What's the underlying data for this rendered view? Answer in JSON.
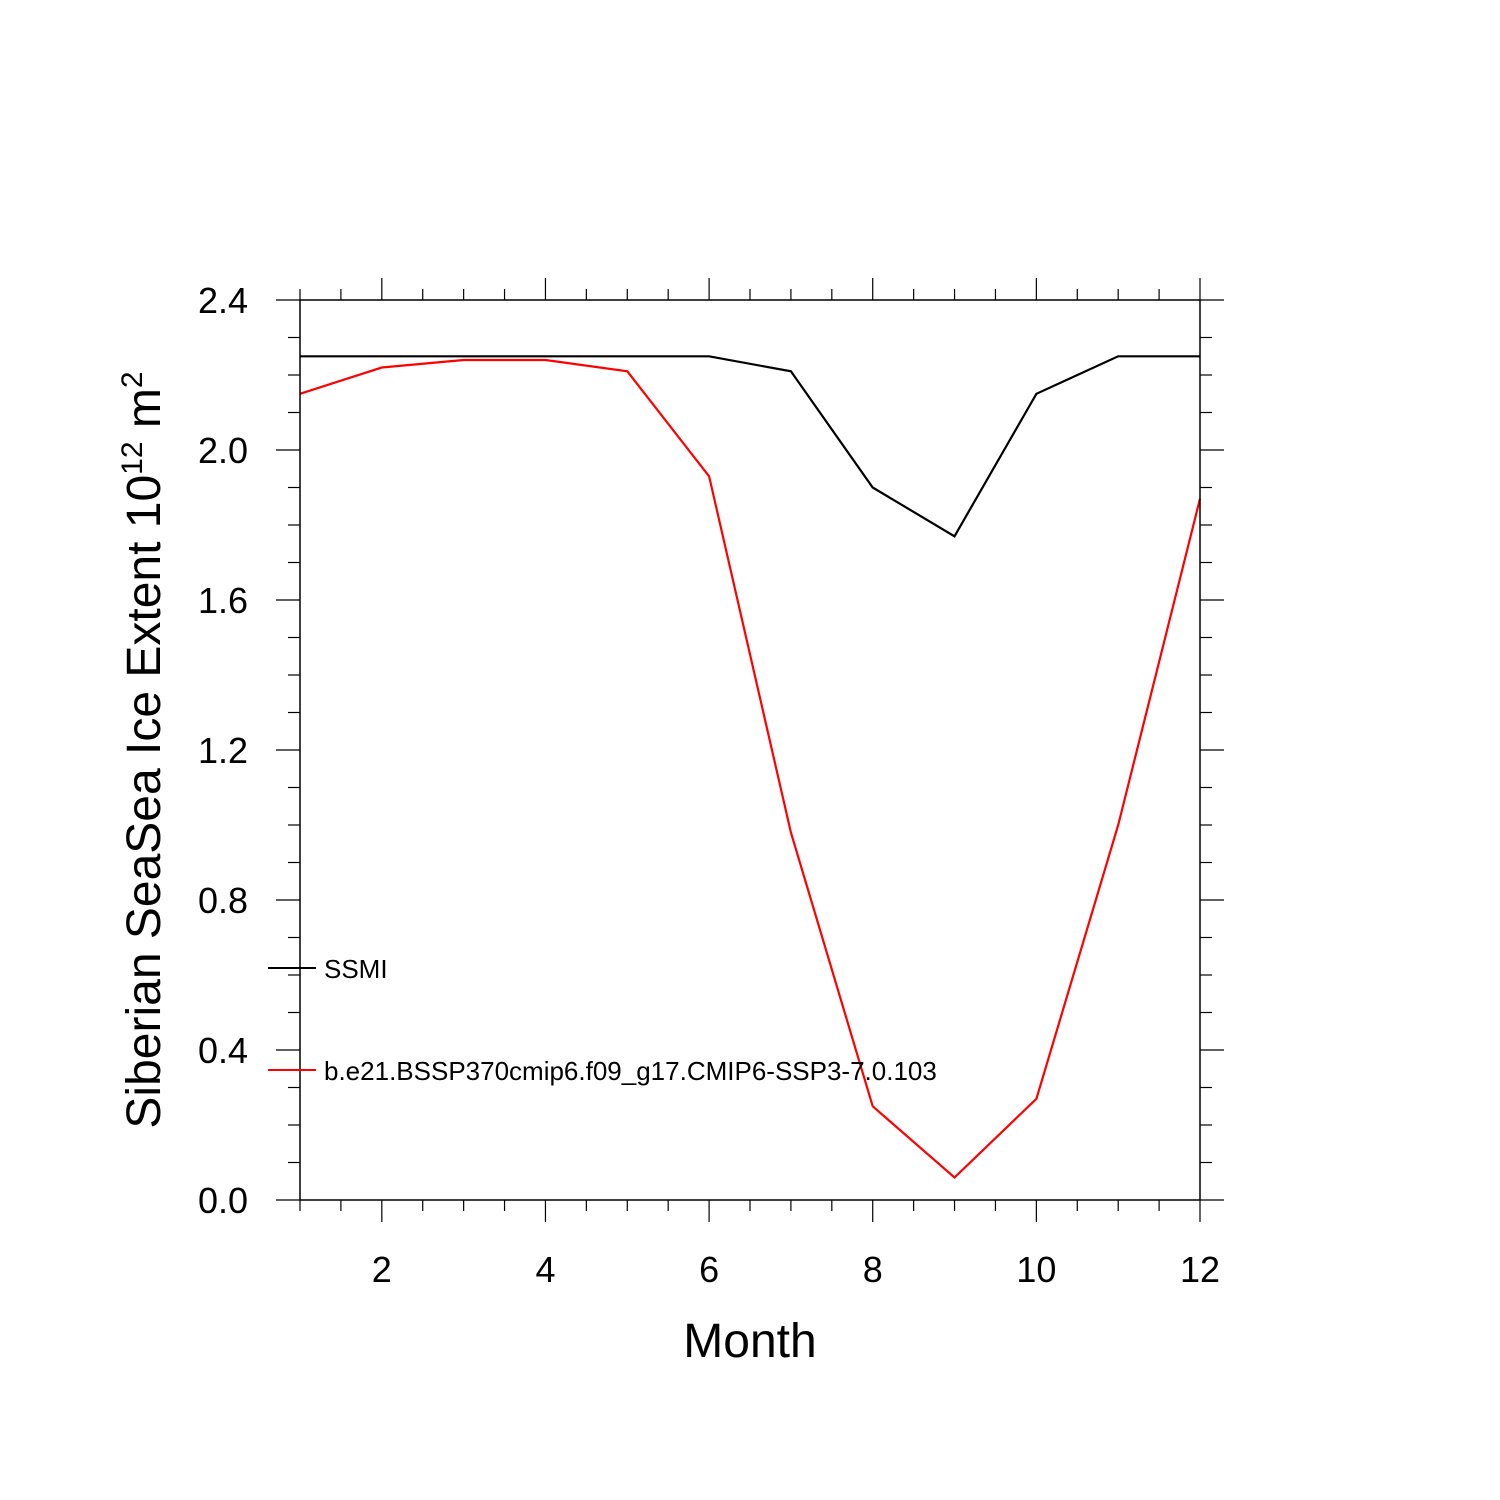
{
  "chart_data": {
    "type": "line",
    "xlabel": "Month",
    "ylabel": {
      "base": "Siberian SeaSea Ice Extent 10",
      "exponent": "12",
      "unit": " m",
      "unit_exponent": "2"
    },
    "xlim": [
      1,
      12
    ],
    "ylim": [
      0.0,
      2.4
    ],
    "xticks": [
      2,
      4,
      6,
      8,
      10,
      12
    ],
    "xtick_labels": [
      "2",
      "4",
      "6",
      "8",
      "10",
      "12"
    ],
    "yticks": [
      0.0,
      0.4,
      0.8,
      1.2,
      1.6,
      2.0,
      2.4
    ],
    "ytick_labels": [
      "0.0",
      "0.4",
      "0.8",
      "1.2",
      "1.6",
      "2.0",
      "2.4"
    ],
    "grid": false,
    "legend_position": "lower-left",
    "x": [
      1,
      2,
      3,
      4,
      5,
      6,
      7,
      8,
      9,
      10,
      11,
      12
    ],
    "series": [
      {
        "name": "SSMI",
        "color": "#000000",
        "values": [
          2.25,
          2.25,
          2.25,
          2.25,
          2.25,
          2.25,
          2.21,
          1.9,
          1.77,
          2.15,
          2.25,
          2.25
        ]
      },
      {
        "name": "b.e21.BSSP370cmip6.f09_g17.CMIP6-SSP3-7.0.103",
        "color": "#ff0000",
        "values": [
          2.15,
          2.22,
          2.24,
          2.24,
          2.21,
          1.93,
          0.98,
          0.25,
          0.06,
          0.27,
          1.0,
          1.87
        ]
      }
    ]
  }
}
